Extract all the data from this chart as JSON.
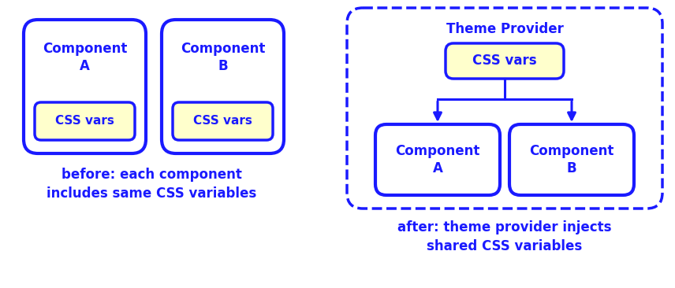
{
  "bg_color": "#ffffff",
  "blue": "#1a1aff",
  "yellow": "#ffffcc",
  "before_caption": "before: each component\nincludes same CSS variables",
  "after_caption": "after: theme provider injects\nshared CSS variables",
  "theme_provider_label": "Theme Provider",
  "css_vars_label": "CSS vars",
  "comp_a_label": "Component\nA",
  "comp_b_label": "Component\nB",
  "figw": 8.56,
  "figh": 3.66,
  "dpi": 100
}
